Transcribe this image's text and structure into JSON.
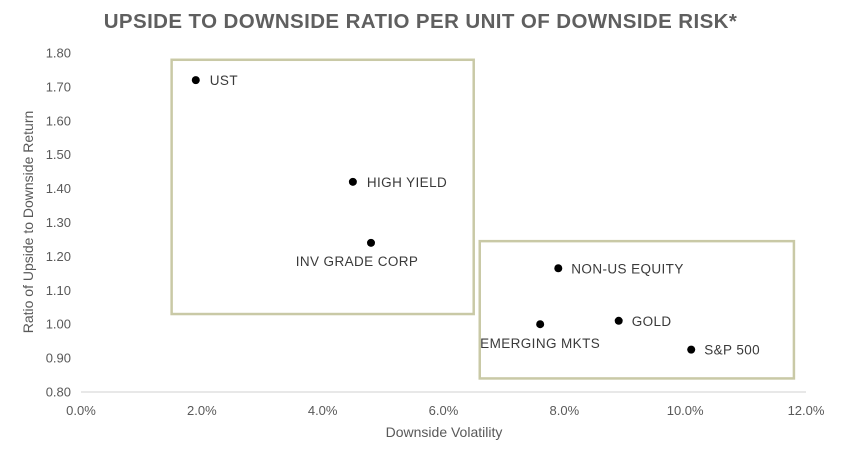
{
  "chart_data": {
    "type": "scatter",
    "title": "UPSIDE TO DOWNSIDE RATIO PER UNIT OF DOWNSIDE RISK*",
    "xlabel": "Downside Volatility",
    "ylabel": "Ratio of Upside  to Downside Return",
    "xlim": [
      0,
      12
    ],
    "ylim": [
      0.8,
      1.8
    ],
    "x_ticks": [
      "0.0%",
      "2.0%",
      "4.0%",
      "6.0%",
      "8.0%",
      "10.0%",
      "12.0%"
    ],
    "y_ticks": [
      "0.80",
      "0.90",
      "1.00",
      "1.10",
      "1.20",
      "1.30",
      "1.40",
      "1.50",
      "1.60",
      "1.70",
      "1.80"
    ],
    "grid": false,
    "points": [
      {
        "label": "UST",
        "x": 1.9,
        "y": 1.72
      },
      {
        "label": "HIGH YIELD",
        "x": 4.5,
        "y": 1.42
      },
      {
        "label": "INV GRADE CORP",
        "x": 4.8,
        "y": 1.24
      },
      {
        "label": "NON-US EQUITY",
        "x": 7.9,
        "y": 1.165
      },
      {
        "label": "GOLD",
        "x": 8.9,
        "y": 1.01
      },
      {
        "label": "EMERGING MKTS",
        "x": 7.6,
        "y": 1.0
      },
      {
        "label": "S&P 500",
        "x": 10.1,
        "y": 0.925
      }
    ],
    "highlight_boxes": [
      {
        "x": [
          1.5,
          6.5
        ],
        "y": [
          1.03,
          1.78
        ]
      },
      {
        "x": [
          6.6,
          11.8
        ],
        "y": [
          0.84,
          1.245
        ]
      }
    ],
    "colors": {
      "points": "#000000",
      "boxes": "#c9c9a6",
      "axis": "#d0d0d0",
      "text": "#595959",
      "title": "#5f5f5f"
    }
  }
}
